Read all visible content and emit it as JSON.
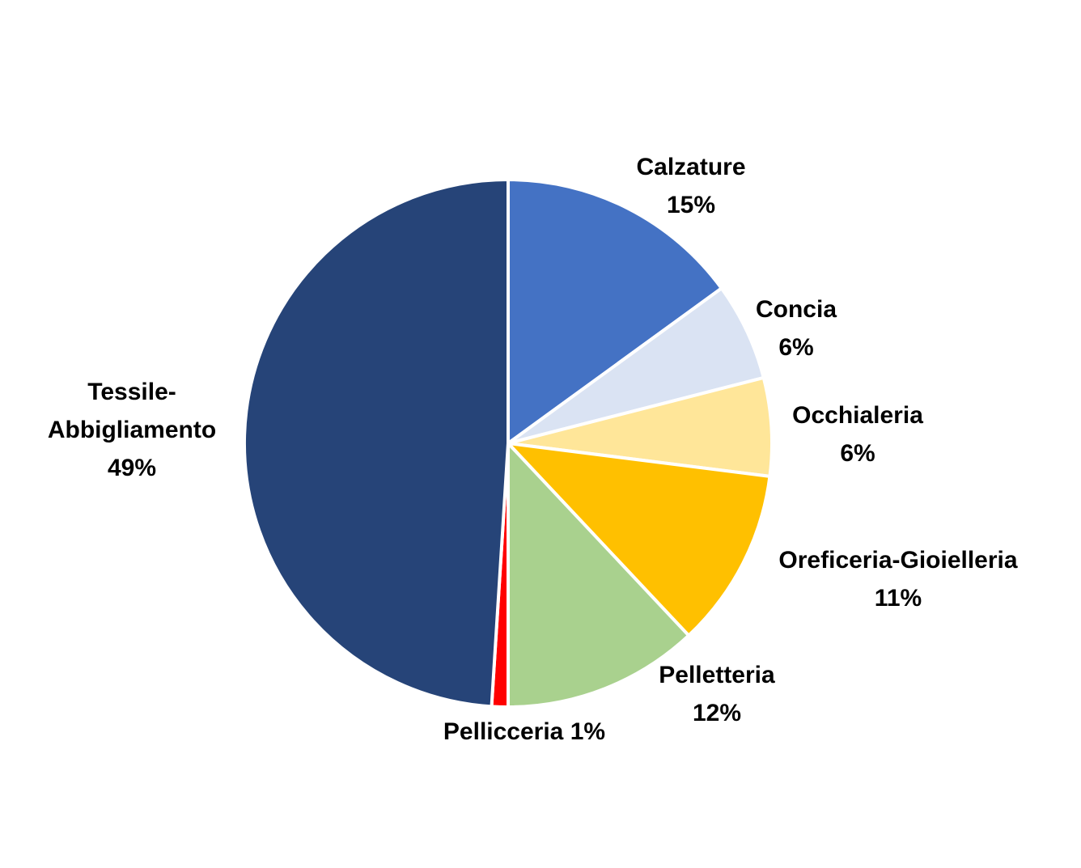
{
  "chart_data": {
    "type": "pie",
    "title": "",
    "start_angle_deg": 0,
    "direction": "clockwise",
    "slice_border_color": "#ffffff",
    "slices": [
      {
        "name": "Calzature",
        "value": 15,
        "value_label": "15%",
        "color": "#4472C4",
        "label_lines": [
          "Calzature",
          "15%"
        ]
      },
      {
        "name": "Concia",
        "value": 6,
        "value_label": "6%",
        "color": "#DAE3F3",
        "label_lines": [
          "Concia",
          "6%"
        ]
      },
      {
        "name": "Occhialeria",
        "value": 6,
        "value_label": "6%",
        "color": "#FFE699",
        "label_lines": [
          "Occhialeria",
          "6%"
        ]
      },
      {
        "name": "Oreficeria-Gioielleria",
        "value": 11,
        "value_label": "11%",
        "color": "#FFC000",
        "label_lines": [
          "Oreficeria-Gioielleria",
          "11%"
        ]
      },
      {
        "name": "Pelletteria",
        "value": 12,
        "value_label": "12%",
        "color": "#A9D18E",
        "label_lines": [
          "Pelletteria",
          "12%"
        ]
      },
      {
        "name": "Pellicceria",
        "value": 1,
        "value_label": "1%",
        "color": "#FF0000",
        "label_lines": [
          "Pellicceria 1%"
        ]
      },
      {
        "name": "Tessile-Abbigliamento",
        "value": 49,
        "value_label": "49%",
        "color": "#264478",
        "label_lines": [
          "Tessile-",
          "Abbigliamento",
          "49%"
        ]
      }
    ]
  }
}
